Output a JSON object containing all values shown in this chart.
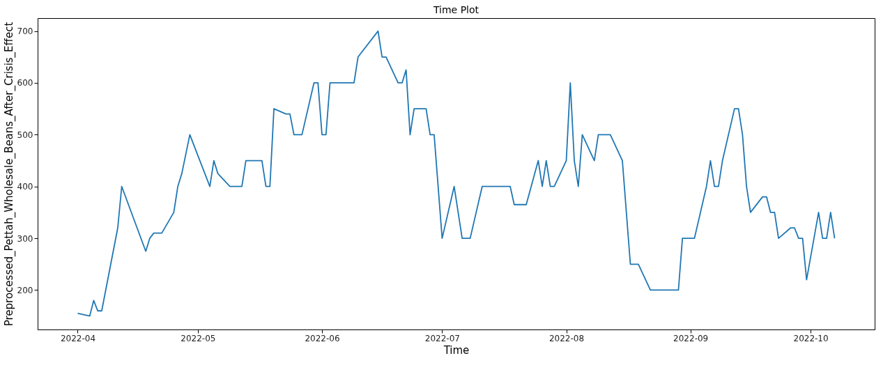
{
  "chart_data": {
    "type": "line",
    "title": "Time Plot",
    "xlabel": "Time",
    "ylabel": "Preprocessed_Pettah_Wholesale_Beans_After_Crisis_Effect",
    "x": [
      "2022-04-01",
      "2022-04-04",
      "2022-04-05",
      "2022-04-06",
      "2022-04-07",
      "2022-04-11",
      "2022-04-12",
      "2022-04-18",
      "2022-04-19",
      "2022-04-20",
      "2022-04-22",
      "2022-04-25",
      "2022-04-26",
      "2022-04-27",
      "2022-04-29",
      "2022-05-04",
      "2022-05-05",
      "2022-05-06",
      "2022-05-09",
      "2022-05-12",
      "2022-05-13",
      "2022-05-17",
      "2022-05-18",
      "2022-05-19",
      "2022-05-20",
      "2022-05-23",
      "2022-05-24",
      "2022-05-25",
      "2022-05-27",
      "2022-05-30",
      "2022-05-31",
      "2022-06-01",
      "2022-06-02",
      "2022-06-03",
      "2022-06-09",
      "2022-06-10",
      "2022-06-15",
      "2022-06-16",
      "2022-06-17",
      "2022-06-20",
      "2022-06-21",
      "2022-06-22",
      "2022-06-23",
      "2022-06-24",
      "2022-06-27",
      "2022-06-28",
      "2022-06-29",
      "2022-07-01",
      "2022-07-04",
      "2022-07-06",
      "2022-07-08",
      "2022-07-11",
      "2022-07-18",
      "2022-07-19",
      "2022-07-22",
      "2022-07-25",
      "2022-07-26",
      "2022-07-27",
      "2022-07-28",
      "2022-07-29",
      "2022-08-01",
      "2022-08-02",
      "2022-08-03",
      "2022-08-04",
      "2022-08-05",
      "2022-08-08",
      "2022-08-09",
      "2022-08-12",
      "2022-08-15",
      "2022-08-17",
      "2022-08-19",
      "2022-08-22",
      "2022-08-29",
      "2022-08-30",
      "2022-09-02",
      "2022-09-05",
      "2022-09-06",
      "2022-09-07",
      "2022-09-08",
      "2022-09-09",
      "2022-09-12",
      "2022-09-13",
      "2022-09-14",
      "2022-09-15",
      "2022-09-16",
      "2022-09-19",
      "2022-09-20",
      "2022-09-21",
      "2022-09-22",
      "2022-09-23",
      "2022-09-26",
      "2022-09-27",
      "2022-09-28",
      "2022-09-29",
      "2022-09-30",
      "2022-10-03",
      "2022-10-04",
      "2022-10-05",
      "2022-10-06",
      "2022-10-07"
    ],
    "series": [
      {
        "color": "#1f77b4",
        "values": [
          155,
          150,
          180,
          160,
          160,
          320,
          400,
          275,
          300,
          310,
          310,
          350,
          400,
          425,
          500,
          400,
          450,
          425,
          400,
          400,
          450,
          450,
          400,
          400,
          550,
          540,
          540,
          500,
          500,
          600,
          600,
          500,
          500,
          600,
          600,
          650,
          700,
          650,
          650,
          600,
          600,
          625,
          500,
          550,
          550,
          500,
          500,
          300,
          400,
          300,
          300,
          400,
          400,
          365,
          365,
          450,
          400,
          450,
          400,
          400,
          450,
          600,
          450,
          400,
          500,
          450,
          500,
          500,
          450,
          250,
          250,
          200,
          200,
          300,
          300,
          400,
          450,
          400,
          400,
          450,
          550,
          550,
          500,
          400,
          350,
          380,
          380,
          350,
          350,
          300,
          320,
          320,
          300,
          300,
          220,
          350,
          300,
          300,
          350,
          300
        ]
      }
    ],
    "xlim": [
      "2022-03-22",
      "2022-10-17"
    ],
    "xticks": [
      "2022-04",
      "2022-05",
      "2022-06",
      "2022-07",
      "2022-08",
      "2022-09",
      "2022-10"
    ],
    "ylim": [
      124,
      725
    ],
    "yticks": [
      200,
      300,
      400,
      500,
      600,
      700
    ],
    "grid": false,
    "line_style": "solid",
    "marker": "none"
  }
}
